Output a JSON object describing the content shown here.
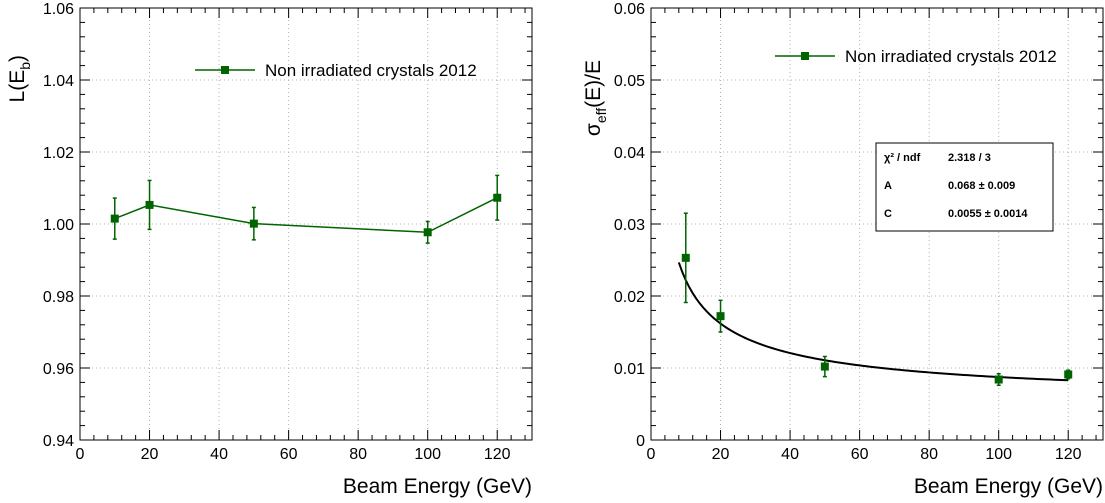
{
  "colors": {
    "series": "#006400",
    "fit": "#000000",
    "grid": "#b0b0b0",
    "frame": "#000000"
  },
  "chart_data": [
    {
      "type": "line",
      "xlabel": "Beam Energy (GeV)",
      "ylabel_main": "L(E",
      "ylabel_sub": "b",
      "ylabel_end": ")",
      "xlim": [
        0,
        130
      ],
      "ylim": [
        0.94,
        1.06
      ],
      "x_ticks": [
        "0",
        "20",
        "40",
        "60",
        "80",
        "100",
        "120"
      ],
      "y_ticks": [
        "0.94",
        "0.96",
        "0.98",
        "1.00",
        "1.02",
        "1.04",
        "1.06"
      ],
      "grid": true,
      "legend_position": "top-right",
      "series": [
        {
          "name": "Non irradiated crystals 2012",
          "x": [
            10,
            20,
            50,
            100,
            120
          ],
          "y": [
            1.0015,
            1.0053,
            1.0001,
            0.9977,
            1.0073
          ],
          "yerr": [
            0.0057,
            0.0068,
            0.0045,
            0.003,
            0.0062
          ]
        }
      ]
    },
    {
      "type": "scatter",
      "xlabel": "Beam Energy (GeV)",
      "ylabel_main": "σ",
      "ylabel_sub": "eff",
      "ylabel_end": "(E)/E",
      "xlim": [
        0,
        130
      ],
      "ylim": [
        0,
        0.06
      ],
      "x_ticks": [
        "0",
        "20",
        "40",
        "60",
        "80",
        "100",
        "120"
      ],
      "y_ticks": [
        "0",
        "0.01",
        "0.02",
        "0.03",
        "0.04",
        "0.05",
        "0.06"
      ],
      "grid": true,
      "legend_position": "top-right",
      "series": [
        {
          "name": "Non irradiated crystals 2012",
          "x": [
            10,
            20,
            50,
            100,
            120
          ],
          "y": [
            0.0253,
            0.0172,
            0.0102,
            0.0084,
            0.0091
          ],
          "yerr": [
            0.0062,
            0.0022,
            0.0014,
            0.0008,
            0.0006
          ]
        }
      ],
      "fit": {
        "A": 0.068,
        "C": 0.0055,
        "x_range": [
          8,
          120
        ],
        "stats": [
          {
            "label": "χ² / ndf",
            "value": "2.318 / 3"
          },
          {
            "label": "A",
            "value": "0.068 ± 0.009"
          },
          {
            "label": "C",
            "value": "0.0055 ± 0.0014"
          }
        ]
      }
    }
  ]
}
